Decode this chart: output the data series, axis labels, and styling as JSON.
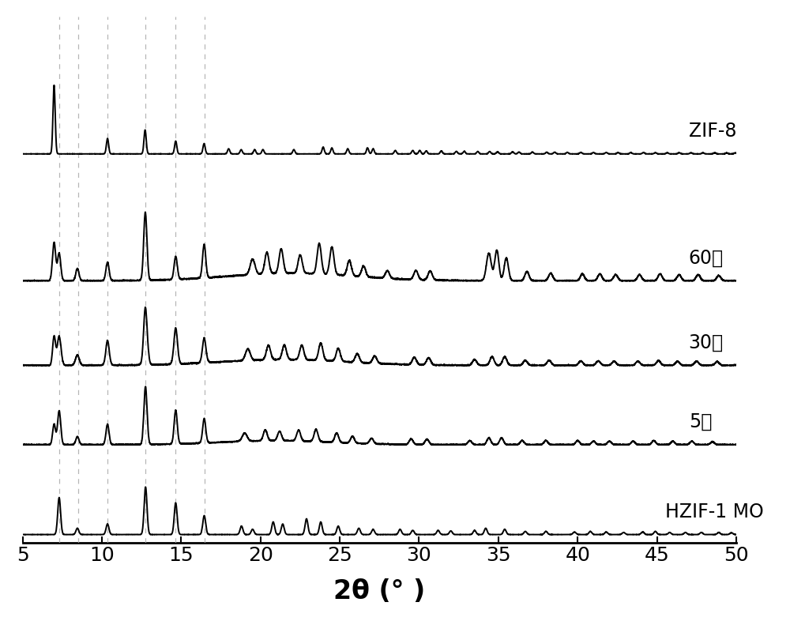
{
  "xlim": [
    5,
    50
  ],
  "xlabel": "2θ (° )",
  "xlabel_fontsize": 24,
  "tick_fontsize": 18,
  "background_color": "#ffffff",
  "labels": [
    "ZIF-8",
    "60倍",
    "30倍",
    "5倍",
    "HZIF-1 MO"
  ],
  "label_fontsize": 17,
  "offsets": [
    7.2,
    4.8,
    3.2,
    1.7,
    0.0
  ],
  "dashed_lines_x": [
    7.3,
    8.5,
    10.35,
    12.75,
    14.65,
    16.45
  ],
  "line_color": "#000000",
  "dashed_color": "#aaaaaa",
  "line_width": 1.4
}
